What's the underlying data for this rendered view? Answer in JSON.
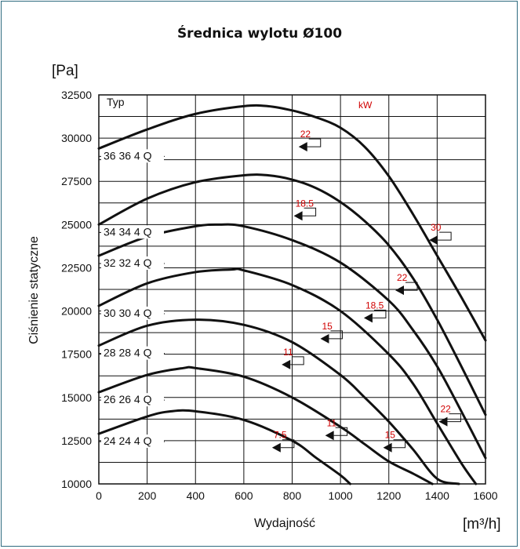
{
  "chart_data": {
    "type": "line",
    "title": "Średnica wylotu Ø100",
    "xlabel": "Wydajność",
    "ylabel": "Ciśnienie statyczne",
    "x_unit": "[m³/h]",
    "y_unit": "[Pa]",
    "xlim": [
      0,
      1600
    ],
    "ylim": [
      10000,
      32500
    ],
    "x_ticks": [
      "0",
      "200",
      "400",
      "600",
      "800",
      "1000",
      "1200",
      "1400",
      "1600"
    ],
    "y_ticks": [
      "10000",
      "12500",
      "15000",
      "17500",
      "20000",
      "22500",
      "25000",
      "27500",
      "30000",
      "32500"
    ],
    "grid": true,
    "legend_header": "Typ",
    "power_unit_label": "kW",
    "colors": {
      "axis_text": "#111111",
      "curve": "#111111",
      "power_label": "#d00000",
      "frame": "#2f6b80"
    },
    "series": [
      {
        "name": "36 36 4 Q",
        "x": [
          0,
          200,
          400,
          600,
          700,
          800,
          900,
          1000,
          1100,
          1200,
          1300,
          1400,
          1500,
          1600
        ],
        "y": [
          29400,
          30500,
          31400,
          31850,
          31850,
          31600,
          31200,
          30600,
          29500,
          27800,
          25600,
          23200,
          20800,
          18300
        ]
      },
      {
        "name": "34 34 4 Q",
        "x": [
          0,
          200,
          400,
          600,
          700,
          800,
          900,
          1000,
          1100,
          1200,
          1300,
          1400,
          1500,
          1600
        ],
        "y": [
          25000,
          26500,
          27450,
          27850,
          27850,
          27600,
          27100,
          26300,
          25200,
          23800,
          21900,
          19500,
          16800,
          14000
        ]
      },
      {
        "name": "32 32 4 Q",
        "x": [
          0,
          200,
          400,
          500,
          600,
          800,
          1000,
          1200,
          1300,
          1400,
          1500,
          1600
        ],
        "y": [
          23200,
          24300,
          24900,
          25000,
          24900,
          24100,
          22800,
          20600,
          18900,
          16800,
          14200,
          11500
        ]
      },
      {
        "name": "30 30 4 Q",
        "x": [
          0,
          200,
          400,
          550,
          600,
          800,
          1000,
          1200,
          1300,
          1400,
          1500,
          1560
        ],
        "y": [
          20300,
          21600,
          22250,
          22400,
          22350,
          21500,
          20000,
          17500,
          15800,
          13500,
          11200,
          10000
        ]
      },
      {
        "name": "28 28 4 Q",
        "x": [
          0,
          200,
          400,
          600,
          800,
          1000,
          1100,
          1200,
          1300,
          1400,
          1490
        ],
        "y": [
          18000,
          19150,
          19500,
          19200,
          18200,
          16300,
          15000,
          13600,
          12000,
          10300,
          10000
        ]
      },
      {
        "name": "26 26 4 Q",
        "x": [
          0,
          200,
          350,
          400,
          600,
          800,
          1000,
          1100,
          1200,
          1300,
          1380
        ],
        "y": [
          15300,
          16300,
          16700,
          16700,
          16200,
          15000,
          13300,
          12300,
          11300,
          10600,
          10000
        ]
      },
      {
        "name": "24 24 4 Q",
        "x": [
          0,
          200,
          300,
          400,
          600,
          800,
          900,
          1000,
          1040
        ],
        "y": [
          12900,
          13900,
          14200,
          14200,
          13700,
          12500,
          11500,
          10500,
          10000
        ]
      }
    ],
    "power_markers": [
      {
        "label": "22",
        "x": 830,
        "y": 29500
      },
      {
        "label": "18.5",
        "x": 810,
        "y": 25500
      },
      {
        "label": "30",
        "x": 1370,
        "y": 24100
      },
      {
        "label": "22",
        "x": 1230,
        "y": 21200
      },
      {
        "label": "18.5",
        "x": 1100,
        "y": 19600
      },
      {
        "label": "15",
        "x": 920,
        "y": 18400
      },
      {
        "label": "11",
        "x": 760,
        "y": 16900
      },
      {
        "label": "22",
        "x": 1410,
        "y": 13600
      },
      {
        "label": "11",
        "x": 940,
        "y": 12800
      },
      {
        "label": "15",
        "x": 1180,
        "y": 12100
      },
      {
        "label": "7.5",
        "x": 720,
        "y": 12100
      }
    ]
  }
}
